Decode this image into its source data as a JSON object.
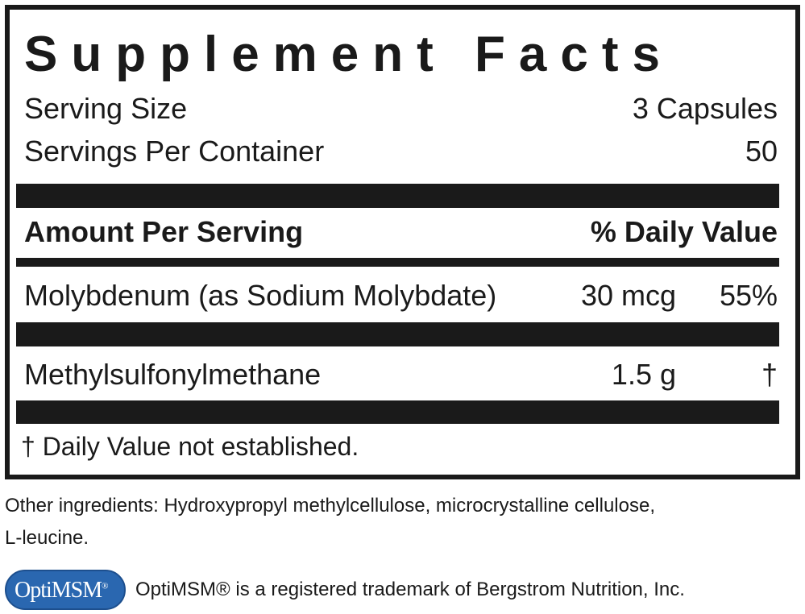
{
  "panel": {
    "title": "Supplement Facts",
    "serving_size_label": "Serving Size",
    "serving_size_value": "3 Capsules",
    "servings_per_container_label": "Servings Per Container",
    "servings_per_container_value": "50",
    "header_amount": "Amount Per Serving",
    "header_dv": "% Daily Value",
    "rows": [
      {
        "name": "Molybdenum (as Sodium Molybdate)",
        "amount": "30 mcg",
        "dv": "55%"
      },
      {
        "name": "Methylsulfonylmethane",
        "amount": "1.5 g",
        "dv": "†"
      }
    ],
    "footnote": "† Daily Value not established."
  },
  "other_ingredients": "Other ingredients: Hydroxypropyl methylcellulose, microcrystalline cellulose,",
  "other_ingredients_line2": "L-leucine.",
  "logo": {
    "text": "OptiMSM",
    "mark": "®",
    "color": "#2a67b0"
  },
  "trademark": "OptiMSM® is a registered trademark of Bergstrom Nutrition, Inc."
}
